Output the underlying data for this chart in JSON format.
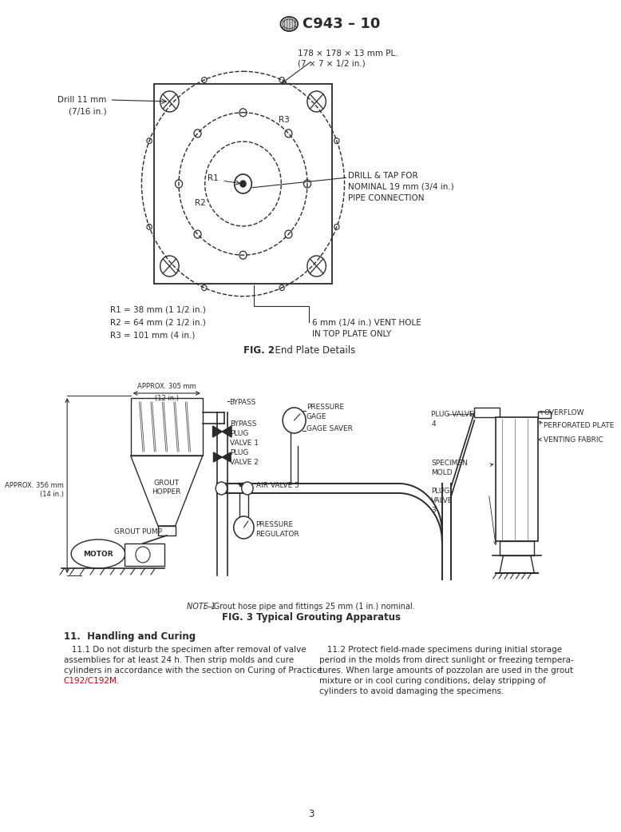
{
  "title": "C943 – 10",
  "bg_color": "#ffffff",
  "text_color": "#2a2a2a",
  "red_color": "#cc0000",
  "page_number": "3",
  "plate_label_line1": "178 × 178 × 13 mm PL.",
  "plate_label_line2": "(7 × 7 × 1/2 in.)",
  "drill_label": "Drill 11 mm\n(7/16 in.)",
  "drill_tap_label": "DRILL & TAP FOR\nNOMINAL 19 mm (3/4 in.)\nPIPE CONNECTION",
  "vent_hole_label": "6 mm (1/4 in.) VENT HOLE\nIN TOP PLATE ONLY",
  "r1_label": "R1",
  "r2_label": "R2",
  "r3_label": "R3",
  "fig2_bold": "FIG. 2",
  "fig2_rest": "  End Plate Details",
  "dimensions_text": "R1 = 38 mm (1 1/2 in.)\nR2 = 64 mm (2 1/2 in.)\nR3 = 101 mm (4 in.)",
  "section11_heading": "11.  Handling and Curing",
  "para11_1_lines": [
    "   11.1 Do not disturb the specimen after removal of valve",
    "assemblies for at least 24 h. Then strip molds and cure",
    "cylinders in accordance with the section on Curing of Practice",
    "C192/C192M."
  ],
  "para11_2_lines": [
    "   11.2 Protect field-made specimens during initial storage",
    "period in the molds from direct sunlight or freezing tempera-",
    "tures. When large amounts of pozzolan are used in the grout",
    "mixture or in cool curing conditions, delay stripping of",
    "cylinders to avoid damaging the specimens."
  ],
  "fig3_note_italic": "NOTE 1",
  "fig3_note_rest": "—Grout hose pipe and fittings 25 mm (1 in.) nominal.",
  "fig3_bold": "FIG. 3 Typical Grouting Apparatus",
  "approx305": "APPROX. 305 mm",
  "approx305b": "(12 in.)",
  "approx356": "APPROX. 356 mm",
  "approx356b": "(14 in.)",
  "bypass": "BYPASS",
  "bypass_plug_valve1": "BYPASS\nPLUG\nVALVE 1",
  "plug_valve2": "PLUG\nVALVE 2",
  "pressure_gage": "PRESSURE\nGAGE",
  "gage_saver": "GAGE SAVER",
  "air_valve5": "AIR VALVE 5",
  "pressure_regulator": "PRESSURE\nREGULATOR",
  "grout_hopper": "GROUT\nHOPPER",
  "grout_pump": "GROUT PUMP",
  "motor": "MOTOR",
  "plug_valve4": "PLUG VALVE\n4",
  "overflow": "OVERFLOW",
  "perforated_plate": "PERFORATED PLATE",
  "venting_fabric": "VENTING FABRIC",
  "specimen_mold": "SPECIMEN\nMOLD",
  "plug_valve3": "PLUG\nVALVE\n3"
}
